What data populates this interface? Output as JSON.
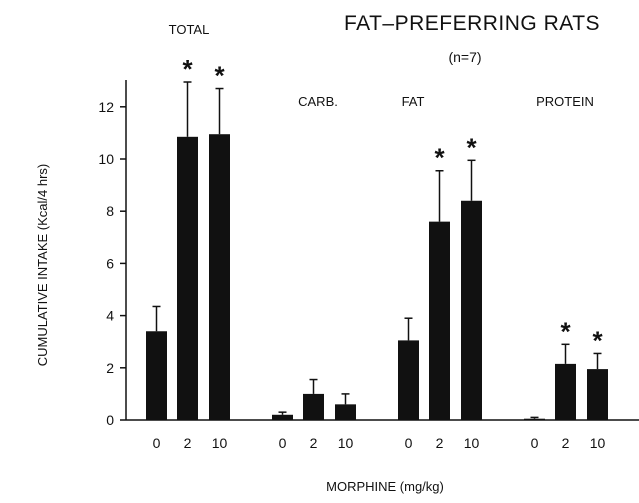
{
  "chart_data": {
    "type": "bar",
    "title": "FAT–PREFERRING RATS",
    "subtitle": "(n=7)",
    "xlabel": "MORPHINE (mg/kg)",
    "ylabel": "CUMULATIVE INTAKE (Kcal/4 hrs)",
    "ylim": [
      0,
      13
    ],
    "yticks": [
      "0",
      "2",
      "4",
      "6",
      "8",
      "10",
      "12"
    ],
    "grid": false,
    "colors": {
      "bar": "#111111",
      "axis": "#111111"
    },
    "significance_marker": "*",
    "groups": [
      {
        "name": "TOTAL",
        "doses": [
          "0",
          "2",
          "10"
        ],
        "values": [
          3.4,
          10.85,
          10.95
        ],
        "errors": [
          0.95,
          2.1,
          1.75
        ],
        "significant": [
          false,
          true,
          true
        ]
      },
      {
        "name": "CARB.",
        "doses": [
          "0",
          "2",
          "10"
        ],
        "values": [
          0.2,
          1.0,
          0.6
        ],
        "errors": [
          0.1,
          0.55,
          0.4
        ],
        "significant": [
          false,
          false,
          false
        ]
      },
      {
        "name": "FAT",
        "doses": [
          "0",
          "2",
          "10"
        ],
        "values": [
          3.05,
          7.6,
          8.4
        ],
        "errors": [
          0.85,
          1.95,
          1.55
        ],
        "significant": [
          false,
          true,
          true
        ]
      },
      {
        "name": "PROTEIN",
        "doses": [
          "0",
          "2",
          "10"
        ],
        "values": [
          0.05,
          2.15,
          1.95
        ],
        "errors": [
          0.05,
          0.75,
          0.6
        ],
        "significant": [
          false,
          true,
          true
        ]
      }
    ]
  }
}
